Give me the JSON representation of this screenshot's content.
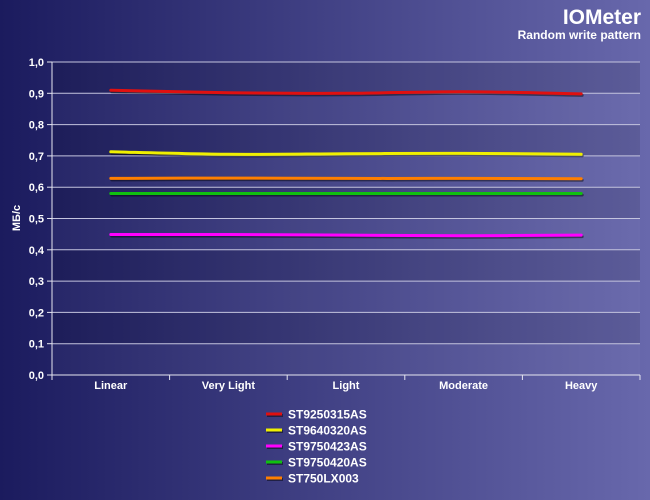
{
  "chart_data": {
    "type": "line",
    "title": "IOMeter",
    "subtitle": "Random write pattern",
    "ylabel": "МБ/с",
    "ylim": [
      0,
      1.0
    ],
    "yticks": [
      "0,0",
      "0,1",
      "0,2",
      "0,3",
      "0,4",
      "0,5",
      "0,6",
      "0,7",
      "0,8",
      "0,9",
      "1,0"
    ],
    "categories": [
      "Linear",
      "Very Light",
      "Light",
      "Moderate",
      "Heavy"
    ],
    "grid": true,
    "legend_position": "bottom-center",
    "series": [
      {
        "name": "ST9250315AS",
        "color": "#e01010",
        "values": [
          0.91,
          0.902,
          0.9,
          0.905,
          0.898
        ]
      },
      {
        "name": "ST9640320AS",
        "color": "#f0f000",
        "values": [
          0.713,
          0.705,
          0.707,
          0.708,
          0.705
        ]
      },
      {
        "name": "ST9750423AS",
        "color": "#ff00ff",
        "values": [
          0.449,
          0.449,
          0.447,
          0.445,
          0.447
        ]
      },
      {
        "name": "ST9750420AS",
        "color": "#10c010",
        "values": [
          0.58,
          0.58,
          0.58,
          0.58,
          0.58
        ]
      },
      {
        "name": "ST750LX003",
        "color": "#ff7f00",
        "values": [
          0.628,
          0.629,
          0.628,
          0.628,
          0.627
        ]
      }
    ]
  }
}
